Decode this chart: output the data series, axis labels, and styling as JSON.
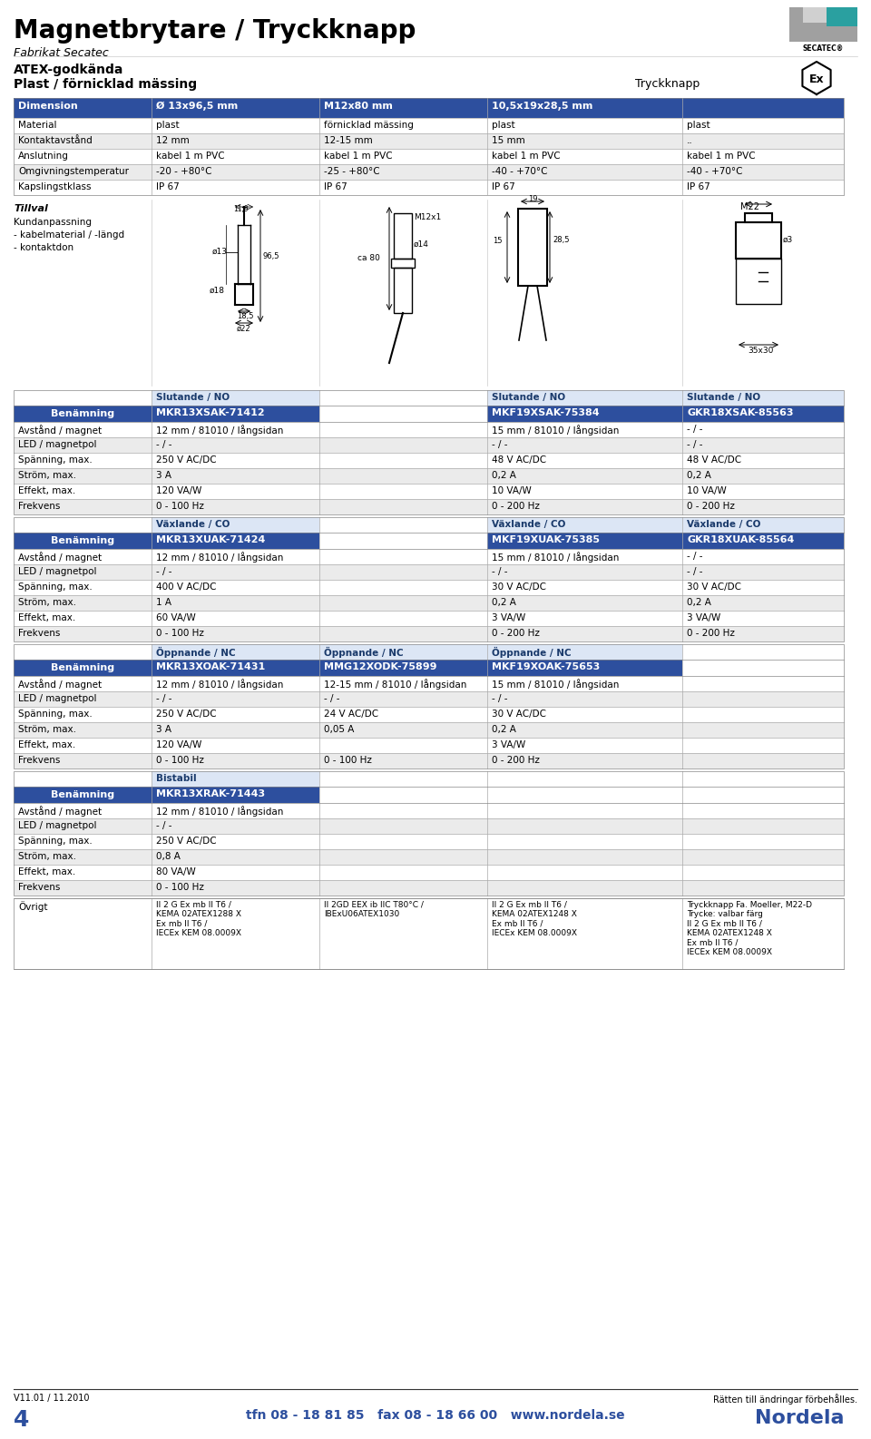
{
  "title": "Magnetbrytare / Tryckknapp",
  "subtitle": "Fabrikat Secatec",
  "atex_title": "ATEX-godkända",
  "plast_title": "Plast / förnicklad mässing",
  "tryckknapp_label": "Tryckknapp",
  "bg_color": "#ffffff",
  "col_header_bg": "#2d4f9e",
  "row_alt_bg": "#ebebeb",
  "row_bg": "#ffffff",
  "top_table_cols": [
    "Dimension",
    "Ø 13x96,5 mm",
    "M12x80 mm",
    "10,5x19x28,5 mm",
    ""
  ],
  "top_table_rows": [
    [
      "Material",
      "plast",
      "förnicklad mässing",
      "plast",
      "plast"
    ],
    [
      "Kontaktavstånd",
      "12 mm",
      "12-15 mm",
      "15 mm",
      ".."
    ],
    [
      "Anslutning",
      "kabel 1 m PVC",
      "kabel 1 m PVC",
      "kabel 1 m PVC",
      "kabel 1 m PVC"
    ],
    [
      "Omgivningstemperatur",
      "-20 - +80°C",
      "-25 - +80°C",
      "-40 - +70°C",
      "-40 - +70°C"
    ],
    [
      "Kapslingstklass",
      "IP 67",
      "IP 67",
      "IP 67",
      "IP 67"
    ]
  ],
  "tillval_text": [
    "Tillval",
    "Kundanpassning",
    "- kabelmaterial / -längd",
    "- kontaktdon"
  ],
  "sections": [
    {
      "product_cols": [
        {
          "col": 1,
          "type": "Slutande / NO",
          "model": "MKR13XSAK-71412"
        },
        {
          "col": 3,
          "type": "Slutande / NO",
          "model": "MKF19XSAK-75384"
        },
        {
          "col": 4,
          "type": "Slutande / NO",
          "model": "GKR18XSAK-85563"
        }
      ],
      "rows": [
        [
          "Avstånd / magnet",
          "12 mm / 81010 / långsidan",
          "",
          "15 mm / 81010 / långsidan",
          "- / -"
        ],
        [
          "LED / magnetpol",
          "- / -",
          "",
          "- / -",
          "- / -"
        ],
        [
          "Spänning, max.",
          "250 V AC/DC",
          "",
          "48 V AC/DC",
          "48 V AC/DC"
        ],
        [
          "Ström, max.",
          "3 A",
          "",
          "0,2 A",
          "0,2 A"
        ],
        [
          "Effekt, max.",
          "120 VA/W",
          "",
          "10 VA/W",
          "10 VA/W"
        ],
        [
          "Frekvens",
          "0 - 100 Hz",
          "",
          "0 - 200 Hz",
          "0 - 200 Hz"
        ]
      ]
    },
    {
      "product_cols": [
        {
          "col": 1,
          "type": "Växlande / CO",
          "model": "MKR13XUAK-71424"
        },
        {
          "col": 3,
          "type": "Växlande / CO",
          "model": "MKF19XUAK-75385"
        },
        {
          "col": 4,
          "type": "Växlande / CO",
          "model": "GKR18XUAK-85564"
        }
      ],
      "rows": [
        [
          "Avstånd / magnet",
          "12 mm / 81010 / långsidan",
          "",
          "15 mm / 81010 / långsidan",
          "- / -"
        ],
        [
          "LED / magnetpol",
          "- / -",
          "",
          "- / -",
          "- / -"
        ],
        [
          "Spänning, max.",
          "400 V AC/DC",
          "",
          "30 V AC/DC",
          "30 V AC/DC"
        ],
        [
          "Ström, max.",
          "1 A",
          "",
          "0,2 A",
          "0,2 A"
        ],
        [
          "Effekt, max.",
          "60 VA/W",
          "",
          "3 VA/W",
          "3 VA/W"
        ],
        [
          "Frekvens",
          "0 - 100 Hz",
          "",
          "0 - 200 Hz",
          "0 - 200 Hz"
        ]
      ]
    },
    {
      "product_cols": [
        {
          "col": 1,
          "type": "Öppnande / NC",
          "model": "MKR13XOAK-71431"
        },
        {
          "col": 2,
          "type": "Öppnande / NC",
          "model": "MMG12XODK-75899"
        },
        {
          "col": 3,
          "type": "Öppnande / NC",
          "model": "MKF19XOAK-75653"
        }
      ],
      "rows": [
        [
          "Avstånd / magnet",
          "12 mm / 81010 / långsidan",
          "12-15 mm / 81010 / långsidan",
          "15 mm / 81010 / långsidan",
          ""
        ],
        [
          "LED / magnetpol",
          "- / -",
          "- / -",
          "- / -",
          ""
        ],
        [
          "Spänning, max.",
          "250 V AC/DC",
          "24 V AC/DC",
          "30 V AC/DC",
          ""
        ],
        [
          "Ström, max.",
          "3 A",
          "0,05 A",
          "0,2 A",
          ""
        ],
        [
          "Effekt, max.",
          "120 VA/W",
          "",
          "3 VA/W",
          ""
        ],
        [
          "Frekvens",
          "0 - 100 Hz",
          "0 - 100 Hz",
          "0 - 200 Hz",
          ""
        ]
      ]
    },
    {
      "product_cols": [
        {
          "col": 1,
          "type": "Bistabil",
          "model": "MKR13XRAK-71443"
        }
      ],
      "rows": [
        [
          "Avstånd / magnet",
          "12 mm / 81010 / långsidan",
          "",
          "",
          ""
        ],
        [
          "LED / magnetpol",
          "- / -",
          "",
          "",
          ""
        ],
        [
          "Spänning, max.",
          "250 V AC/DC",
          "",
          "",
          ""
        ],
        [
          "Ström, max.",
          "0,8 A",
          "",
          "",
          ""
        ],
        [
          "Effekt, max.",
          "80 VA/W",
          "",
          "",
          ""
        ],
        [
          "Frekvens",
          "0 - 100 Hz",
          "",
          "",
          ""
        ]
      ]
    }
  ],
  "ovrigt_texts": [
    "II 2 G Ex mb II T6 /\nKEMA 02ATEX1288 X\nEx mb II T6 /\nIECEx KEM 08.0009X",
    "II 2GD EEX ib IIC T80°C /\nIBExU06ATEX1030",
    "II 2 G Ex mb II T6 /\nKEMA 02ATEX1248 X\nEx mb II T6 /\nIECEx KEM 08.0009X",
    "Tryckknapp Fa. Moeller, M22-D\nTrycke: valbar färg\nII 2 G Ex mb II T6 /\nKEMA 02ATEX1248 X\nEx mb II T6 /\nIECEx KEM 08.0009X"
  ],
  "footer_left": "V11.01 / 11.2010",
  "footer_page": "4",
  "footer_center": "tfn 08 - 18 81 85   fax 08 - 18 66 00   www.nordela.se",
  "footer_nordela": "Nordela",
  "footer_right": "Rätten till ändringar förbehålles."
}
